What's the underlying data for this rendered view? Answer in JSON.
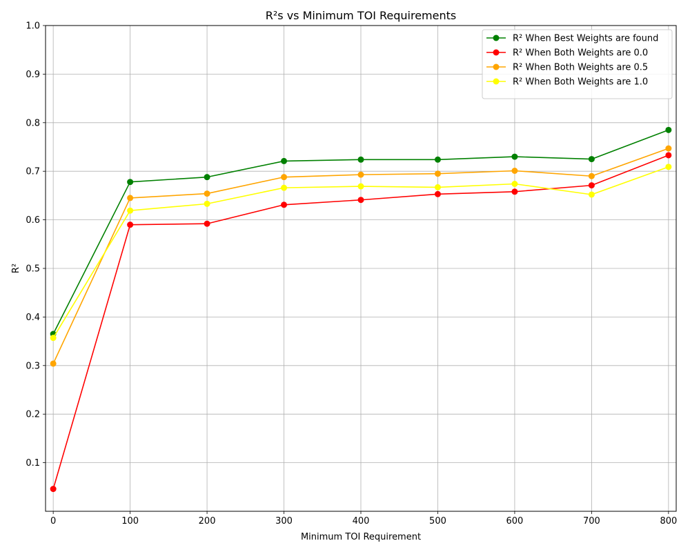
{
  "chart_data": {
    "type": "line",
    "title": "R²s vs Minimum TOI Requirements",
    "xlabel": "Minimum TOI Requirement",
    "ylabel": "R²",
    "x": [
      0,
      100,
      200,
      300,
      400,
      500,
      600,
      700,
      800
    ],
    "xlim": [
      -10,
      810
    ],
    "ylim": [
      0.0,
      1.0
    ],
    "xticks": [
      0,
      100,
      200,
      300,
      400,
      500,
      600,
      700,
      800
    ],
    "yticks": [
      0.1,
      0.2,
      0.3,
      0.4,
      0.5,
      0.6,
      0.7,
      0.8,
      0.9,
      1.0
    ],
    "ytick_labels": [
      "0.1",
      "0.2",
      "0.3",
      "0.4",
      "0.5",
      "0.6",
      "0.7",
      "0.8",
      "0.9",
      "1.0"
    ],
    "grid": true,
    "legend_position": "top-right",
    "series": [
      {
        "name": "R² When Best Weights are found",
        "color": "#008000",
        "values": [
          0.365,
          0.678,
          0.688,
          0.721,
          0.724,
          0.724,
          0.73,
          0.725,
          0.785
        ]
      },
      {
        "name": "R² When Both Weights are 0.0",
        "color": "#ff0000",
        "values": [
          0.046,
          0.59,
          0.592,
          0.631,
          0.641,
          0.653,
          0.658,
          0.671,
          0.733
        ]
      },
      {
        "name": "R² When Both Weights are 0.5",
        "color": "#ffa500",
        "values": [
          0.304,
          0.645,
          0.654,
          0.688,
          0.693,
          0.695,
          0.701,
          0.69,
          0.747
        ]
      },
      {
        "name": "R² When Both Weights are 1.0",
        "color": "#ffff00",
        "values": [
          0.357,
          0.619,
          0.633,
          0.666,
          0.669,
          0.667,
          0.674,
          0.652,
          0.709
        ]
      }
    ]
  }
}
